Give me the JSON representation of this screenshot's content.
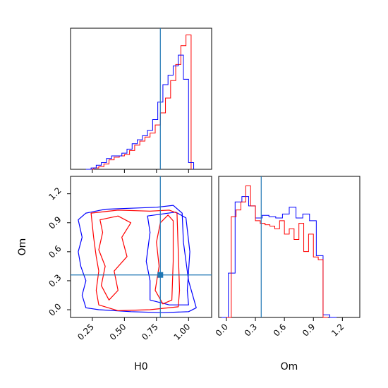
{
  "colors": {
    "series_red": "#ff0000",
    "series_blue": "#0000ff",
    "truth_line": "#1f77b4"
  },
  "chart_data": [
    {
      "type": "histogram",
      "panel": "H0 marginal",
      "xlim": [
        0.08,
        1.18
      ],
      "truth": 0.78,
      "grid": false,
      "series": [
        {
          "color": "red",
          "edges": [
            0.22,
            0.26,
            0.3,
            0.34,
            0.38,
            0.42,
            0.46,
            0.5,
            0.54,
            0.58,
            0.62,
            0.66,
            0.7,
            0.74,
            0.78,
            0.82,
            0.86,
            0.9,
            0.94,
            0.98,
            1.02
          ],
          "counts": [
            0.0,
            0.01,
            0.02,
            0.04,
            0.07,
            0.09,
            0.1,
            0.11,
            0.14,
            0.18,
            0.21,
            0.24,
            0.27,
            0.33,
            0.42,
            0.53,
            0.66,
            0.78,
            0.92,
            1.0
          ]
        },
        {
          "color": "blue",
          "edges": [
            0.2,
            0.24,
            0.28,
            0.32,
            0.36,
            0.4,
            0.44,
            0.48,
            0.52,
            0.56,
            0.6,
            0.64,
            0.68,
            0.72,
            0.76,
            0.8,
            0.84,
            0.88,
            0.92,
            0.96,
            1.0,
            1.04
          ],
          "counts": [
            0.0,
            0.01,
            0.03,
            0.05,
            0.08,
            0.1,
            0.1,
            0.12,
            0.15,
            0.19,
            0.22,
            0.25,
            0.29,
            0.37,
            0.5,
            0.63,
            0.7,
            0.77,
            0.85,
            0.67,
            0.05
          ]
        }
      ]
    },
    {
      "type": "contour",
      "panel": "H0 vs Om joint",
      "xlabel": "H0",
      "ylabel": "Om",
      "xlim": [
        0.08,
        1.18
      ],
      "ylim": [
        -0.08,
        1.38
      ],
      "xticks": [
        "0.25",
        "0.50",
        "0.75",
        "1.00"
      ],
      "yticks": [
        "0.0",
        "0.3",
        "0.6",
        "0.9",
        "1.2"
      ],
      "truth": {
        "x": 0.78,
        "y": 0.36
      },
      "series": [
        {
          "color": "blue",
          "contours": [
            [
              [
                0.14,
                0.93
              ],
              [
                0.2,
                1.0
              ],
              [
                0.35,
                1.04
              ],
              [
                0.55,
                1.05
              ],
              [
                0.75,
                1.06
              ],
              [
                0.88,
                1.08
              ],
              [
                0.95,
                1.0
              ],
              [
                0.96,
                0.7
              ],
              [
                1.0,
                0.3
              ],
              [
                1.06,
                0.02
              ],
              [
                1.0,
                -0.02
              ],
              [
                0.8,
                -0.03
              ],
              [
                0.55,
                -0.02
              ],
              [
                0.3,
                0.0
              ],
              [
                0.2,
                0.02
              ],
              [
                0.17,
                0.15
              ],
              [
                0.2,
                0.3
              ],
              [
                0.16,
                0.45
              ],
              [
                0.14,
                0.6
              ],
              [
                0.17,
                0.75
              ],
              [
                0.14,
                0.93
              ]
            ],
            [
              [
                0.68,
                0.97
              ],
              [
                0.9,
                1.01
              ],
              [
                0.98,
                0.95
              ],
              [
                1.01,
                0.6
              ],
              [
                0.99,
                0.2
              ],
              [
                1.0,
                0.05
              ],
              [
                0.85,
                0.05
              ],
              [
                0.7,
                0.1
              ],
              [
                0.7,
                0.3
              ],
              [
                0.67,
                0.5
              ],
              [
                0.7,
                0.8
              ],
              [
                0.68,
                0.97
              ]
            ]
          ]
        },
        {
          "color": "red",
          "contours": [
            [
              [
                0.24,
                1.0
              ],
              [
                0.45,
                1.03
              ],
              [
                0.7,
                1.02
              ],
              [
                0.85,
                1.03
              ],
              [
                0.91,
                1.0
              ],
              [
                0.92,
                0.6
              ],
              [
                0.93,
                0.2
              ],
              [
                0.92,
                0.03
              ],
              [
                0.7,
                0.0
              ],
              [
                0.45,
                -0.01
              ],
              [
                0.3,
                0.05
              ],
              [
                0.28,
                0.2
              ],
              [
                0.3,
                0.4
              ],
              [
                0.28,
                0.55
              ],
              [
                0.26,
                0.75
              ],
              [
                0.24,
                1.0
              ]
            ],
            [
              [
                0.31,
                0.93
              ],
              [
                0.45,
                0.97
              ],
              [
                0.55,
                0.9
              ],
              [
                0.48,
                0.75
              ],
              [
                0.52,
                0.55
              ],
              [
                0.42,
                0.4
              ],
              [
                0.45,
                0.2
              ],
              [
                0.38,
                0.1
              ],
              [
                0.32,
                0.25
              ],
              [
                0.35,
                0.45
              ],
              [
                0.3,
                0.62
              ],
              [
                0.33,
                0.8
              ],
              [
                0.31,
                0.93
              ]
            ],
            [
              [
                0.78,
                0.9
              ],
              [
                0.84,
                0.98
              ],
              [
                0.88,
                0.92
              ],
              [
                0.88,
                0.5
              ],
              [
                0.87,
                0.1
              ],
              [
                0.8,
                0.06
              ],
              [
                0.74,
                0.2
              ],
              [
                0.77,
                0.45
              ],
              [
                0.75,
                0.7
              ],
              [
                0.78,
                0.9
              ]
            ]
          ]
        }
      ]
    },
    {
      "type": "histogram",
      "panel": "Om marginal",
      "xlabel": "Om",
      "xlim": [
        -0.08,
        1.38
      ],
      "xticks": [
        "0.0",
        "0.3",
        "0.6",
        "0.9",
        "1.2"
      ],
      "truth": 0.36,
      "grid": false,
      "series": [
        {
          "color": "blue",
          "edges": [
            -0.05,
            0.02,
            0.09,
            0.16,
            0.23,
            0.3,
            0.37,
            0.44,
            0.51,
            0.58,
            0.65,
            0.72,
            0.79,
            0.86,
            0.93,
            1.0,
            1.07,
            1.14
          ],
          "counts": [
            0.0,
            0.33,
            0.86,
            0.9,
            0.83,
            0.74,
            0.76,
            0.75,
            0.74,
            0.77,
            0.82,
            0.74,
            0.77,
            0.72,
            0.46,
            0.02,
            0.0
          ]
        },
        {
          "color": "red",
          "edges": [
            0.0,
            0.05,
            0.1,
            0.15,
            0.2,
            0.25,
            0.3,
            0.35,
            0.4,
            0.45,
            0.5,
            0.55,
            0.6,
            0.65,
            0.7,
            0.75,
            0.8,
            0.85,
            0.9,
            0.95,
            1.0,
            1.05
          ],
          "counts": [
            0.0,
            0.75,
            0.8,
            0.86,
            0.98,
            0.83,
            0.72,
            0.7,
            0.69,
            0.68,
            0.66,
            0.72,
            0.62,
            0.66,
            0.58,
            0.7,
            0.49,
            0.62,
            0.45,
            0.43,
            0.0
          ]
        }
      ]
    }
  ]
}
